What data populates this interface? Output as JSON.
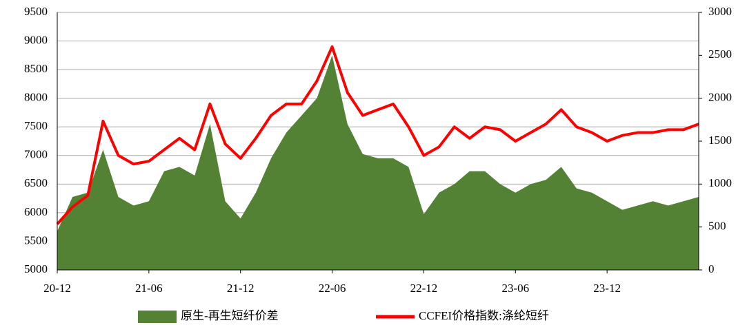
{
  "chart_data": {
    "type": "area-line",
    "categories": [
      "20-12",
      null,
      null,
      null,
      null,
      null,
      "21-06",
      null,
      null,
      null,
      null,
      null,
      "21-12",
      null,
      null,
      null,
      null,
      null,
      "22-06",
      null,
      null,
      null,
      null,
      null,
      "22-12",
      null,
      null,
      null,
      null,
      null,
      "23-06",
      null,
      null,
      null,
      null,
      null,
      "23-12",
      null,
      null,
      null,
      null,
      null,
      null
    ],
    "series": [
      {
        "name": "原生-再生短纤价差",
        "color": "#548235",
        "axis": "y2",
        "kind": "area",
        "values": [
          450,
          850,
          900,
          1400,
          850,
          750,
          800,
          1150,
          1200,
          1100,
          1700,
          800,
          600,
          900,
          1300,
          1600,
          1800,
          2000,
          2500,
          1700,
          1350,
          1300,
          1300,
          1200,
          650,
          900,
          1000,
          1150,
          1150,
          1000,
          900,
          1000,
          1050,
          1200,
          950,
          900,
          800,
          700,
          750,
          800,
          750,
          800,
          850
        ]
      },
      {
        "name": "CCFEI价格指数:涤纶短纤",
        "color": "#ff0000",
        "axis": "y",
        "kind": "line",
        "values": [
          5800,
          6100,
          6300,
          7600,
          7000,
          6850,
          6900,
          7100,
          7300,
          7100,
          7900,
          7200,
          6950,
          7300,
          7700,
          7900,
          7900,
          8300,
          8900,
          8100,
          7700,
          7800,
          7900,
          7500,
          7000,
          7150,
          7500,
          7300,
          7500,
          7450,
          7250,
          7400,
          7550,
          7800,
          7500,
          7400,
          7250,
          7350,
          7400,
          7400,
          7450,
          7450,
          7550
        ]
      }
    ],
    "ylim": [
      5000,
      9500
    ],
    "yticks": [
      5000,
      5500,
      6000,
      6500,
      7000,
      7500,
      8000,
      8500,
      9000,
      9500
    ],
    "y2lim": [
      0,
      3000
    ],
    "y2ticks": [
      0,
      500,
      1000,
      1500,
      2000,
      2500,
      3000
    ],
    "grid": true,
    "legend": "bottom"
  }
}
